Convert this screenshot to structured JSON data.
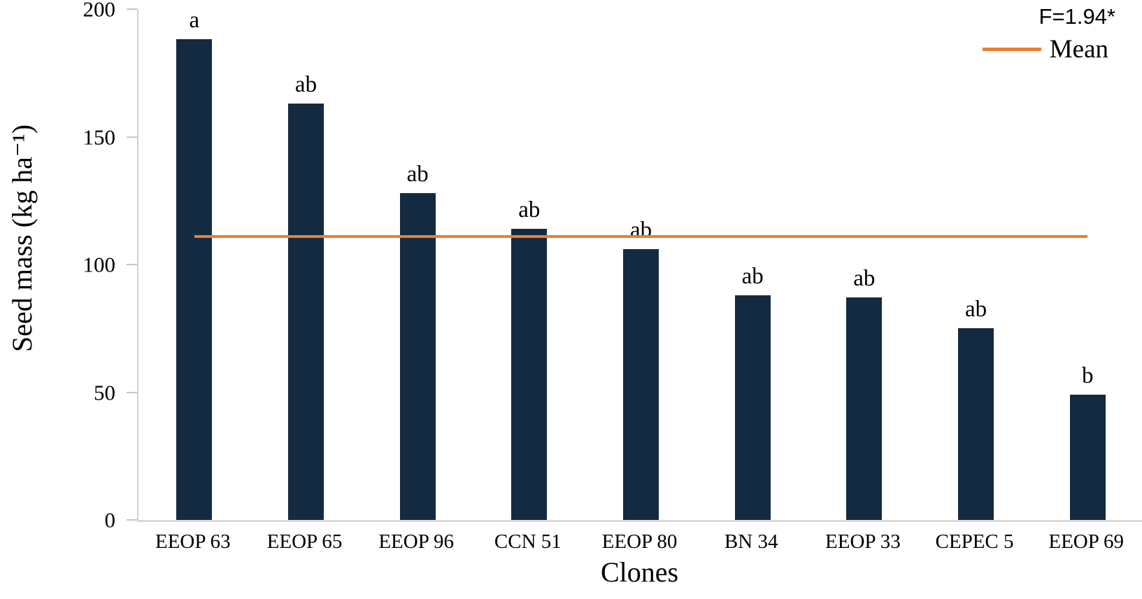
{
  "figure": {
    "annotation": "F=1.94*",
    "legend_label": "Mean",
    "ylabel": "Seed mass (kg ha⁻¹)",
    "xlabel": "Clones"
  },
  "chart_data": {
    "type": "bar",
    "title": "",
    "xlabel": "Clones",
    "ylabel": "Seed mass (kg ha⁻¹)",
    "categories": [
      "EEOP 63",
      "EEOP 65",
      "EEOP 96",
      "CCN 51",
      "EEOP 80",
      "BN 34",
      "EEOP 33",
      "CEPEC 5",
      "EEOP 69"
    ],
    "values": [
      190,
      163,
      128,
      114,
      106,
      88,
      87,
      75,
      49
    ],
    "significance_letters": [
      "a",
      "ab",
      "ab",
      "ab",
      "ab",
      "ab",
      "ab",
      "ab",
      "b"
    ],
    "mean_value": 111,
    "mean_line_label": "Mean",
    "annotation": "F=1.94*",
    "ylim": [
      0,
      200
    ],
    "yticks": [
      0,
      50,
      100,
      150,
      200
    ],
    "grid": false,
    "legend_position": "top-right",
    "bar_color": "#142a40",
    "mean_line_color": "#ed7d31",
    "axis_color": "#d0d0d0"
  }
}
